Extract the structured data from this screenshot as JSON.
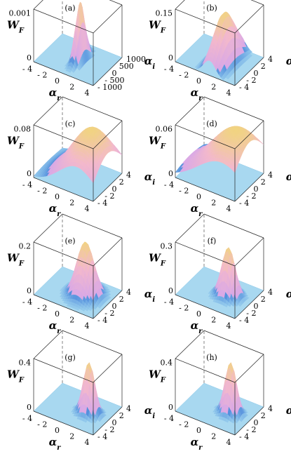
{
  "chart_data": [
    {
      "type": "surface",
      "panel_label": "(a)",
      "zlabel": "W",
      "zlabel_sub": "F",
      "xlabel": "α",
      "xlabel_sub": "r",
      "ylabel": "α",
      "ylabel_sub": "i",
      "z_tick": "0.001",
      "z_zero": "0",
      "x_ticks": [
        "- 4",
        "- 2",
        "0",
        "2",
        "4"
      ],
      "y_ticks": [
        "- 1000",
        "- 500",
        "0",
        "500",
        "1000"
      ],
      "xlim": [
        -4,
        4
      ],
      "ylim": [
        -1000,
        1000
      ],
      "peak": {
        "x": 0.3,
        "y": 0,
        "sx": 0.35,
        "sy": 300,
        "height": 0.0012
      }
    },
    {
      "type": "surface",
      "panel_label": "(b)",
      "zlabel": "W",
      "zlabel_sub": "F",
      "xlabel": "α",
      "xlabel_sub": "r",
      "ylabel": "α",
      "ylabel_sub": "i",
      "z_tick": "0.15",
      "z_zero": "0",
      "x_ticks": [
        "- 4",
        "- 2",
        "0",
        "2",
        "4"
      ],
      "y_ticks": [
        "- 4",
        "- 2",
        "0",
        "2",
        "4"
      ],
      "xlim": [
        -4,
        4
      ],
      "ylim": [
        -4,
        4
      ],
      "peak": {
        "x": 0.6,
        "y": 0,
        "sx": 0.8,
        "sy": 2.6,
        "height": 0.15
      }
    },
    {
      "type": "surface",
      "panel_label": "(c)",
      "zlabel": "W",
      "zlabel_sub": "F",
      "xlabel": "α",
      "xlabel_sub": "r",
      "ylabel": "α",
      "ylabel_sub": "i",
      "z_tick": "0.08",
      "z_zero": "0",
      "x_ticks": [
        "- 4",
        "- 2",
        "0",
        "2",
        "4"
      ],
      "y_ticks": [
        "- 4",
        "- 2",
        "0",
        "2",
        "4"
      ],
      "xlim": [
        -4,
        4
      ],
      "ylim": [
        -4,
        4
      ],
      "peak": {
        "x": 1.8,
        "y": 0,
        "sx": 2.4,
        "sy": 3.6,
        "height": 0.085
      }
    },
    {
      "type": "surface",
      "panel_label": "(d)",
      "zlabel": "W",
      "zlabel_sub": "F",
      "xlabel": "α",
      "xlabel_sub": "r",
      "ylabel": "α",
      "ylabel_sub": "i",
      "z_tick": "0.06",
      "z_zero": "0",
      "x_ticks": [
        "- 4",
        "- 2",
        "0",
        "2",
        "4"
      ],
      "y_ticks": [
        "- 4",
        "- 2",
        "0",
        "2",
        "4"
      ],
      "xlim": [
        -4,
        4
      ],
      "ylim": [
        -4,
        4
      ],
      "peak": {
        "x": 2.2,
        "y": 0,
        "sx": 3.2,
        "sy": 4.2,
        "height": 0.065
      }
    },
    {
      "type": "surface",
      "panel_label": "(e)",
      "zlabel": "W",
      "zlabel_sub": "F",
      "xlabel": "α",
      "xlabel_sub": "r",
      "ylabel": "α",
      "ylabel_sub": "i",
      "z_tick": "0.2",
      "z_zero": "0",
      "x_ticks": [
        "- 4",
        "- 2",
        "0",
        "2",
        "4"
      ],
      "y_ticks": [
        "- 4",
        "- 2",
        "0",
        "2",
        "4"
      ],
      "xlim": [
        -4,
        4
      ],
      "ylim": [
        -4,
        4
      ],
      "peak": {
        "x": 1.0,
        "y": 0,
        "sx": 1.0,
        "sy": 1.3,
        "height": 0.22
      }
    },
    {
      "type": "surface",
      "panel_label": "(f)",
      "zlabel": "W",
      "zlabel_sub": "F",
      "xlabel": "α",
      "xlabel_sub": "r",
      "ylabel": "α",
      "ylabel_sub": "i",
      "z_tick": "0.3",
      "z_zero": "0",
      "x_ticks": [
        "- 4",
        "- 2",
        "0",
        "2",
        "4"
      ],
      "y_ticks": [
        "- 4",
        "- 2",
        "0",
        "2",
        "4"
      ],
      "xlim": [
        -4,
        4
      ],
      "ylim": [
        -4,
        4
      ],
      "peak": {
        "x": 1.2,
        "y": 0,
        "sx": 0.8,
        "sy": 0.9,
        "height": 0.3
      }
    },
    {
      "type": "surface",
      "panel_label": "(g)",
      "zlabel": "W",
      "zlabel_sub": "F",
      "xlabel": "α",
      "xlabel_sub": "r",
      "ylabel": "α",
      "ylabel_sub": "i",
      "z_tick": "0.4",
      "z_zero": "0",
      "x_ticks": [
        "- 4",
        "- 2",
        "0",
        "2",
        "4"
      ],
      "y_ticks": [
        "- 4",
        "- 2",
        "0",
        "2",
        "4"
      ],
      "xlim": [
        -4,
        4
      ],
      "ylim": [
        -4,
        4
      ],
      "peak": {
        "x": 1.5,
        "y": 0,
        "sx": 0.7,
        "sy": 0.75,
        "height": 0.42
      }
    },
    {
      "type": "surface",
      "panel_label": "(h)",
      "zlabel": "W",
      "zlabel_sub": "F",
      "xlabel": "α",
      "xlabel_sub": "r",
      "ylabel": "α",
      "ylabel_sub": "i",
      "z_tick": "0.4",
      "z_zero": "0",
      "x_ticks": [
        "- 4",
        "- 2",
        "0",
        "2",
        "4"
      ],
      "y_ticks": [
        "- 4",
        "- 2",
        "0",
        "2",
        "4"
      ],
      "xlim": [
        -4,
        4
      ],
      "ylim": [
        -4,
        4
      ],
      "peak": {
        "x": 1.5,
        "y": 0,
        "sx": 0.7,
        "sy": 0.75,
        "height": 0.42
      }
    }
  ],
  "colors": {
    "floor": "#a8d8f0",
    "floor_edge": "#8cc8e8",
    "surface_low": "#9fd4ef",
    "surface_mid": "#d9a8e6",
    "surface_high": "#f3b8cc",
    "crest": "#f0e060",
    "edge_cyan": "#30d0d0",
    "negative": "#d02010"
  }
}
